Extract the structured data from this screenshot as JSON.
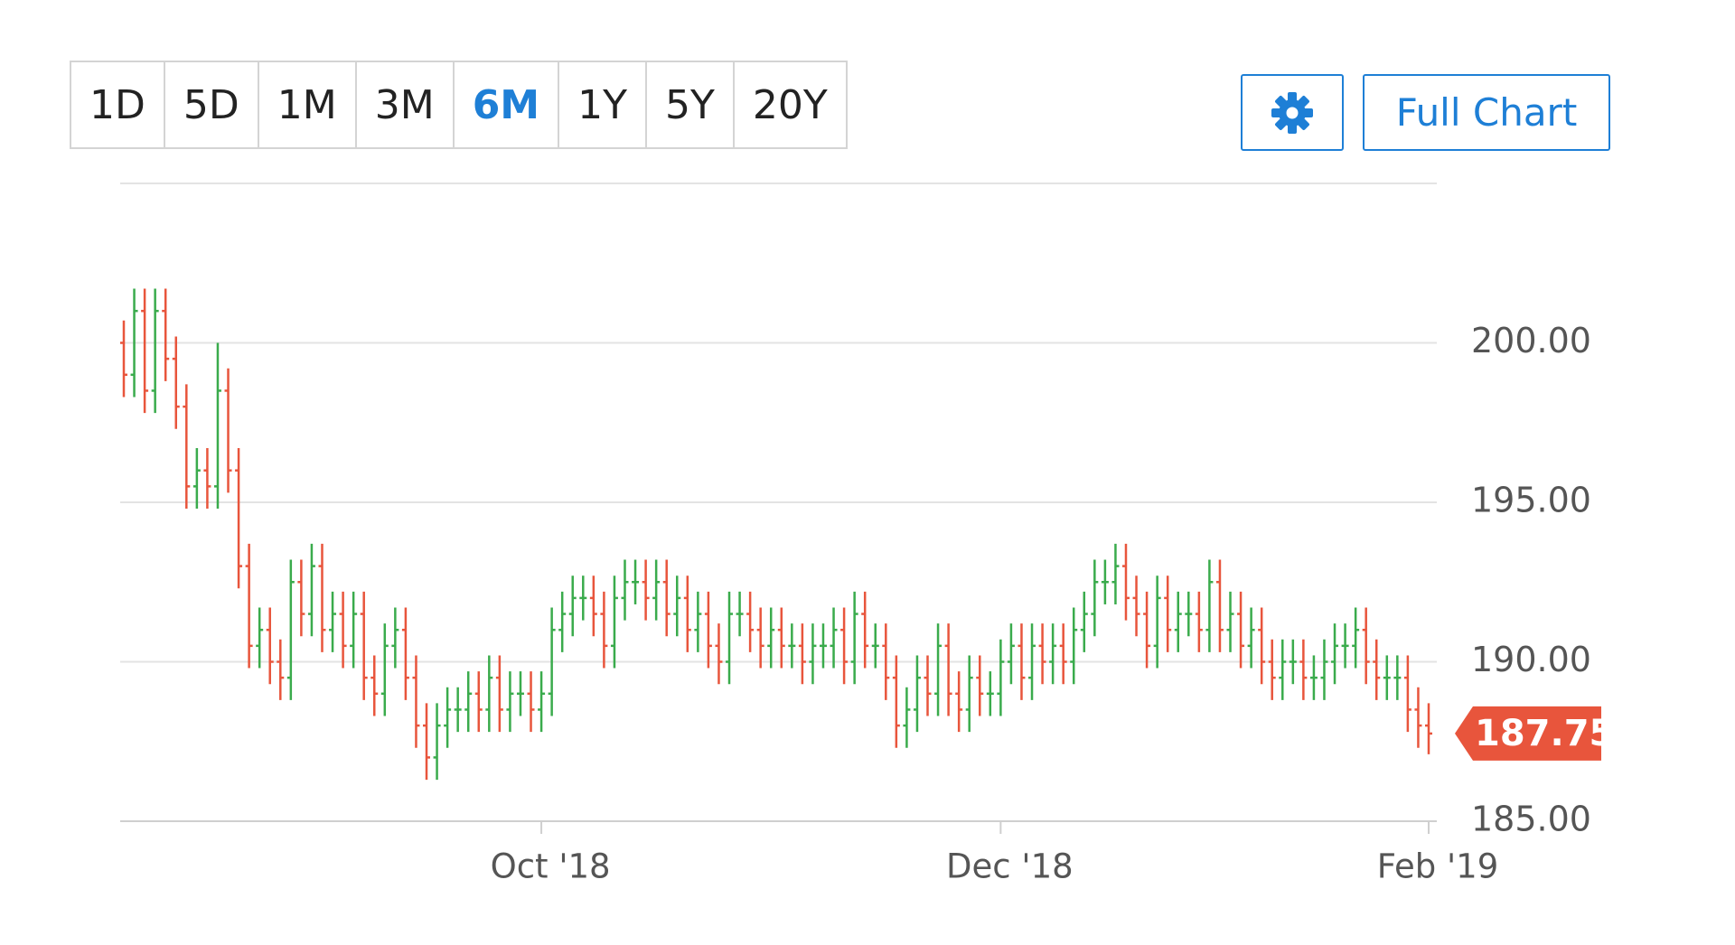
{
  "toolbar": {
    "ranges": [
      "1D",
      "5D",
      "1M",
      "3M",
      "6M",
      "1Y",
      "5Y",
      "20Y"
    ],
    "selected": "6M",
    "full_chart": "Full Chart"
  },
  "chart_data": {
    "type": "ohlc",
    "up_color": "#3aab4c",
    "down_color": "#e8553c",
    "ylim": [
      185,
      205
    ],
    "yticks": [
      {
        "value": 185,
        "label": "185.00"
      },
      {
        "value": 190,
        "label": "190.00"
      },
      {
        "value": 195,
        "label": "195.00"
      },
      {
        "value": 200,
        "label": "200.00"
      }
    ],
    "xlim": [
      0,
      125
    ],
    "xticks": [
      {
        "value": 40,
        "label": "Oct '18"
      },
      {
        "value": 84,
        "label": "Dec '18"
      },
      {
        "value": 125,
        "label": "Feb '19"
      }
    ],
    "grid": true,
    "last_price": 187.75,
    "open": [
      200.0,
      199.0,
      201.0,
      198.5,
      201.0,
      199.5,
      198.0,
      195.5,
      196.0,
      195.5,
      198.5,
      196.0,
      193.0,
      190.5,
      191.0,
      190.0,
      189.5,
      192.5,
      191.5,
      193.0,
      191.0,
      191.5,
      190.5,
      191.5,
      189.5,
      189.0,
      190.5,
      191.0,
      189.5,
      188.0,
      187.0,
      188.0,
      188.5,
      188.5,
      189.0,
      188.5,
      189.5,
      188.5,
      189.0,
      189.0,
      188.5,
      189.0,
      191.0,
      191.5,
      192.0,
      192.0,
      191.5,
      190.5,
      192.0,
      192.5,
      192.5,
      192.0,
      192.5,
      191.5,
      192.0,
      191.0,
      191.5,
      190.5,
      190.0,
      191.5,
      191.5,
      191.0,
      190.5,
      191.0,
      190.5,
      190.5,
      190.0,
      190.5,
      190.5,
      191.0,
      190.0,
      191.5,
      190.5,
      190.5,
      189.5,
      188.0,
      188.5,
      189.5,
      189.0,
      190.5,
      189.0,
      188.5,
      189.5,
      189.0,
      189.0,
      190.0,
      190.5,
      189.5,
      190.5,
      190.0,
      190.5,
      190.0,
      191.0,
      191.5,
      192.5,
      192.5,
      193.0,
      192.0,
      191.5,
      190.5,
      192.0,
      191.0,
      191.5,
      191.5,
      191.0,
      192.5,
      191.0,
      191.5,
      190.5,
      191.0,
      190.0,
      189.5,
      190.0,
      190.0,
      189.5,
      189.5,
      190.0,
      190.5,
      190.5,
      191.0,
      190.0,
      189.5,
      189.5,
      189.5,
      188.5,
      188.0
    ],
    "high": [
      200.7,
      201.7,
      201.7,
      201.7,
      201.7,
      200.2,
      198.7,
      196.7,
      196.7,
      200.0,
      199.2,
      196.7,
      193.7,
      191.7,
      191.7,
      190.7,
      193.2,
      193.2,
      193.7,
      193.7,
      192.2,
      192.2,
      192.2,
      192.2,
      190.2,
      191.2,
      191.7,
      191.7,
      190.2,
      188.7,
      188.7,
      189.2,
      189.2,
      189.7,
      189.7,
      190.2,
      190.2,
      189.7,
      189.7,
      189.7,
      189.7,
      191.7,
      192.2,
      192.7,
      192.7,
      192.7,
      192.2,
      192.7,
      193.2,
      193.2,
      193.2,
      193.2,
      193.2,
      192.7,
      192.7,
      192.2,
      192.2,
      191.2,
      192.2,
      192.2,
      192.2,
      191.7,
      191.7,
      191.7,
      191.2,
      191.2,
      191.2,
      191.2,
      191.7,
      191.7,
      192.2,
      192.2,
      191.2,
      191.2,
      190.2,
      189.2,
      190.2,
      190.2,
      191.2,
      191.2,
      189.7,
      190.2,
      190.2,
      189.7,
      190.7,
      191.2,
      191.2,
      191.2,
      191.2,
      191.2,
      191.2,
      191.7,
      192.2,
      193.2,
      193.2,
      193.7,
      193.7,
      192.7,
      192.2,
      192.7,
      192.7,
      192.2,
      192.2,
      192.2,
      193.2,
      193.2,
      192.2,
      192.2,
      191.7,
      191.7,
      190.7,
      190.7,
      190.7,
      190.7,
      190.2,
      190.7,
      191.2,
      191.2,
      191.7,
      191.7,
      190.7,
      190.2,
      190.2,
      190.2,
      189.2,
      188.7
    ],
    "low": [
      198.3,
      198.3,
      197.8,
      197.8,
      198.8,
      197.3,
      194.8,
      194.8,
      194.8,
      194.8,
      195.3,
      192.3,
      189.8,
      189.8,
      189.3,
      188.8,
      188.8,
      190.8,
      190.8,
      190.3,
      190.3,
      189.8,
      189.8,
      188.8,
      188.3,
      188.3,
      189.8,
      188.8,
      187.3,
      186.3,
      186.3,
      187.3,
      187.8,
      187.8,
      187.8,
      187.8,
      187.8,
      187.8,
      188.3,
      187.8,
      187.8,
      188.3,
      190.3,
      190.8,
      191.3,
      190.8,
      189.8,
      189.8,
      191.3,
      191.8,
      191.3,
      191.3,
      190.8,
      190.8,
      190.3,
      190.3,
      189.8,
      189.3,
      189.3,
      190.8,
      190.3,
      189.8,
      189.8,
      189.8,
      189.8,
      189.3,
      189.3,
      189.8,
      189.8,
      189.3,
      189.3,
      189.8,
      189.8,
      188.8,
      187.3,
      187.3,
      187.8,
      188.3,
      188.3,
      188.3,
      187.8,
      187.8,
      188.3,
      188.3,
      188.3,
      189.3,
      188.8,
      188.8,
      189.3,
      189.3,
      189.3,
      189.3,
      190.3,
      190.8,
      191.8,
      191.8,
      191.3,
      190.8,
      189.8,
      189.8,
      190.3,
      190.3,
      190.8,
      190.3,
      190.3,
      190.3,
      190.3,
      189.8,
      189.8,
      189.3,
      188.8,
      188.8,
      189.3,
      188.8,
      188.8,
      188.8,
      189.3,
      189.8,
      189.8,
      189.3,
      188.8,
      188.8,
      188.8,
      187.8,
      187.3,
      187.1
    ],
    "close": [
      199.0,
      201.0,
      198.5,
      201.0,
      199.5,
      198.0,
      195.5,
      196.0,
      195.5,
      198.5,
      196.0,
      193.0,
      190.5,
      191.0,
      190.0,
      189.5,
      192.5,
      191.5,
      193.0,
      191.0,
      191.5,
      190.5,
      191.5,
      189.5,
      189.0,
      190.5,
      191.0,
      189.5,
      188.0,
      187.0,
      188.0,
      188.5,
      188.5,
      189.0,
      188.5,
      189.5,
      188.5,
      189.0,
      189.0,
      188.5,
      189.0,
      191.0,
      191.5,
      192.0,
      192.0,
      191.5,
      190.5,
      192.0,
      192.5,
      192.5,
      192.0,
      192.5,
      191.5,
      192.0,
      191.0,
      191.5,
      190.5,
      190.0,
      191.5,
      191.5,
      191.0,
      190.5,
      191.0,
      190.5,
      190.5,
      190.0,
      190.5,
      190.5,
      191.0,
      190.0,
      191.5,
      190.5,
      190.5,
      189.5,
      188.0,
      188.5,
      189.5,
      189.0,
      190.5,
      189.0,
      188.5,
      189.5,
      189.0,
      189.0,
      190.0,
      190.5,
      189.5,
      190.5,
      190.0,
      190.5,
      190.0,
      191.0,
      191.5,
      192.5,
      192.5,
      193.0,
      192.0,
      191.5,
      190.5,
      192.0,
      191.0,
      191.5,
      191.5,
      191.0,
      192.5,
      191.0,
      191.5,
      190.5,
      191.0,
      190.0,
      189.5,
      190.0,
      190.0,
      189.5,
      189.5,
      190.0,
      190.5,
      190.5,
      191.0,
      190.0,
      189.5,
      189.5,
      189.5,
      188.5,
      188.0,
      187.75
    ]
  }
}
